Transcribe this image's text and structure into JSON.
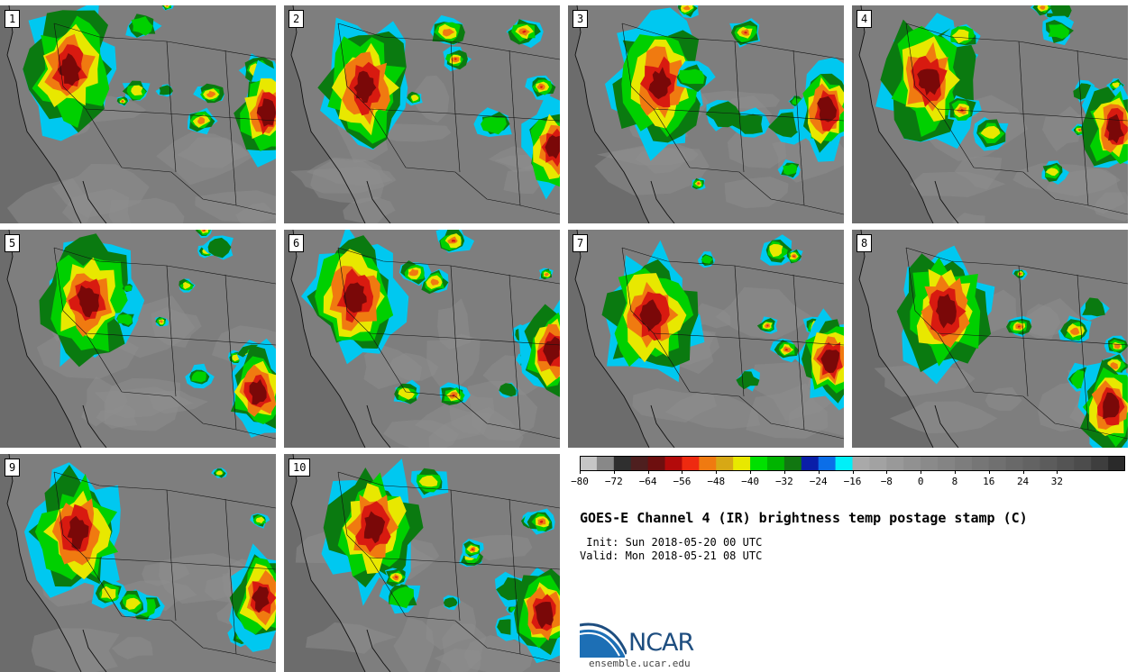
{
  "title": "GOES-E Channel 4 (IR) brightness temp postage stamp (C)",
  "init": " Init: Sun 2018-05-20 00 UTC",
  "valid": "Valid: Mon 2018-05-21 08 UTC",
  "panels": [
    {
      "label": "1"
    },
    {
      "label": "2"
    },
    {
      "label": "3"
    },
    {
      "label": "4"
    },
    {
      "label": "5"
    },
    {
      "label": "6"
    },
    {
      "label": "7"
    },
    {
      "label": "8"
    },
    {
      "label": "9"
    },
    {
      "label": "10"
    }
  ],
  "colorbar": {
    "colors": [
      "#c6c6c6",
      "#888888",
      "#2f2f2f",
      "#4e1f1f",
      "#6d0f0f",
      "#b30a0a",
      "#ee2a10",
      "#f07a10",
      "#d7a815",
      "#e8e800",
      "#00e000",
      "#00b400",
      "#117711",
      "#0a1ea8",
      "#0b6ee8",
      "#00f0f8",
      "#a9a9a9",
      "#a2a2a2",
      "#999999",
      "#919191",
      "#8a8a8a",
      "#848484",
      "#7d7d7d",
      "#767676",
      "#707070",
      "#696969",
      "#636363",
      "#5c5c5c",
      "#545454",
      "#4c4c4c",
      "#3e3e3e",
      "#2a2a2a"
    ],
    "ticks": [
      "−80",
      "−72",
      "−64",
      "−56",
      "−48",
      "−40",
      "−32",
      "−24",
      "−16",
      "−8",
      "0",
      "8",
      "16",
      "24",
      "32"
    ]
  },
  "logo": {
    "text": "NCAR",
    "url": "ensemble.ucar.edu"
  }
}
